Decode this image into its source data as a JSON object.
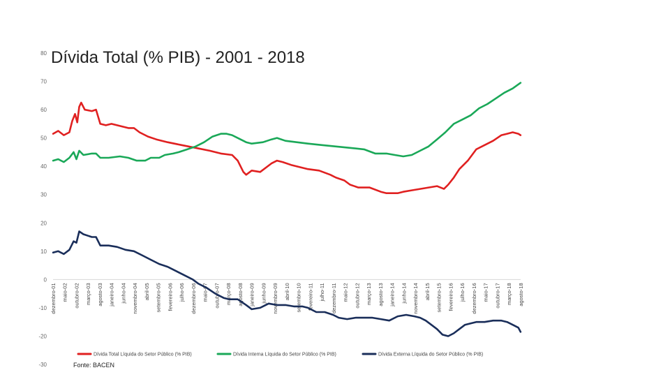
{
  "chart_data": {
    "type": "line",
    "title": "Dívida Total (% PIB) - 2001 - 2018",
    "source": "Fonte: BACEN",
    "ylim": [
      -30,
      80
    ],
    "yticks": [
      "80",
      "70",
      "60",
      "50",
      "40",
      "30",
      "20",
      "10",
      "0",
      "-10",
      "-20",
      "-30"
    ],
    "grid": false,
    "legend_position": "bottom",
    "x_tick_labels": [
      "dezembro-01",
      "maio-02",
      "outubro-02",
      "março-03",
      "agosto-03",
      "janeiro-04",
      "junho-04",
      "novembro-04",
      "abril-05",
      "setembro-05",
      "fevereiro-06",
      "julho-06",
      "dezembro-06",
      "maio-07",
      "outubro-07",
      "março-08",
      "agosto-08",
      "janeiro-09",
      "junho-09",
      "novembro-09",
      "abril-10",
      "setembro-10",
      "fevereiro-11",
      "julho-11",
      "dezembro-11",
      "maio-12",
      "outubro-12",
      "março-13",
      "agosto-13",
      "janeiro-14",
      "junho-14",
      "novembro-14",
      "abril-15",
      "setembro-15",
      "fevereiro-16",
      "julho-16",
      "dezembro-16",
      "maio-17",
      "outubro-17",
      "março-18",
      "agosto-18"
    ],
    "x_start_year": 2001.917,
    "x_end_year": 2018.583,
    "series": [
      {
        "name": "Dívida Total Líquida do Setor Público (% PIB)",
        "color": "#e02020",
        "points": [
          [
            2001.92,
            51.5
          ],
          [
            2002.1,
            52.5
          ],
          [
            2002.3,
            51.0
          ],
          [
            2002.5,
            52.0
          ],
          [
            2002.6,
            56.0
          ],
          [
            2002.7,
            58.5
          ],
          [
            2002.78,
            55.5
          ],
          [
            2002.85,
            61.0
          ],
          [
            2002.92,
            62.5
          ],
          [
            2003.05,
            60.0
          ],
          [
            2003.3,
            59.5
          ],
          [
            2003.45,
            60.0
          ],
          [
            2003.6,
            55.0
          ],
          [
            2003.8,
            54.5
          ],
          [
            2004.0,
            55.0
          ],
          [
            2004.4,
            54.0
          ],
          [
            2004.6,
            53.5
          ],
          [
            2004.8,
            53.5
          ],
          [
            2005.0,
            52.0
          ],
          [
            2005.3,
            50.5
          ],
          [
            2005.6,
            49.5
          ],
          [
            2006.0,
            48.5
          ],
          [
            2006.5,
            47.5
          ],
          [
            2007.0,
            46.5
          ],
          [
            2007.5,
            45.5
          ],
          [
            2007.9,
            44.5
          ],
          [
            2008.3,
            44.0
          ],
          [
            2008.5,
            42.0
          ],
          [
            2008.7,
            38.0
          ],
          [
            2008.8,
            37.0
          ],
          [
            2009.0,
            38.5
          ],
          [
            2009.3,
            38.0
          ],
          [
            2009.7,
            41.0
          ],
          [
            2009.9,
            42.0
          ],
          [
            2010.1,
            41.5
          ],
          [
            2010.4,
            40.5
          ],
          [
            2010.8,
            39.5
          ],
          [
            2011.0,
            39.0
          ],
          [
            2011.4,
            38.5
          ],
          [
            2011.8,
            37.0
          ],
          [
            2012.0,
            36.0
          ],
          [
            2012.3,
            35.0
          ],
          [
            2012.5,
            33.5
          ],
          [
            2012.8,
            32.5
          ],
          [
            2013.2,
            32.5
          ],
          [
            2013.6,
            31.0
          ],
          [
            2013.8,
            30.5
          ],
          [
            2014.0,
            30.5
          ],
          [
            2014.2,
            30.5
          ],
          [
            2014.4,
            31.0
          ],
          [
            2014.7,
            31.5
          ],
          [
            2015.0,
            32.0
          ],
          [
            2015.3,
            32.5
          ],
          [
            2015.6,
            33.0
          ],
          [
            2015.85,
            32.0
          ],
          [
            2016.0,
            33.5
          ],
          [
            2016.2,
            36.0
          ],
          [
            2016.4,
            39.0
          ],
          [
            2016.7,
            42.0
          ],
          [
            2017.0,
            46.0
          ],
          [
            2017.3,
            47.5
          ],
          [
            2017.6,
            49.0
          ],
          [
            2017.9,
            51.0
          ],
          [
            2018.1,
            51.5
          ],
          [
            2018.3,
            52.0
          ],
          [
            2018.5,
            51.5
          ],
          [
            2018.58,
            51.0
          ]
        ]
      },
      {
        "name": "Dívida Interna Líquida do Setor Público (% PIB)",
        "color": "#1aa858",
        "points": [
          [
            2001.92,
            42.0
          ],
          [
            2002.1,
            42.5
          ],
          [
            2002.3,
            41.5
          ],
          [
            2002.5,
            43.0
          ],
          [
            2002.65,
            45.0
          ],
          [
            2002.75,
            42.5
          ],
          [
            2002.85,
            45.5
          ],
          [
            2003.0,
            44.0
          ],
          [
            2003.3,
            44.5
          ],
          [
            2003.45,
            44.5
          ],
          [
            2003.6,
            43.0
          ],
          [
            2003.9,
            43.0
          ],
          [
            2004.3,
            43.5
          ],
          [
            2004.6,
            43.0
          ],
          [
            2004.9,
            42.0
          ],
          [
            2005.2,
            42.0
          ],
          [
            2005.4,
            43.0
          ],
          [
            2005.7,
            43.0
          ],
          [
            2005.9,
            44.0
          ],
          [
            2006.2,
            44.5
          ],
          [
            2006.4,
            45.0
          ],
          [
            2006.7,
            46.0
          ],
          [
            2007.0,
            47.0
          ],
          [
            2007.3,
            48.5
          ],
          [
            2007.6,
            50.5
          ],
          [
            2007.9,
            51.5
          ],
          [
            2008.1,
            51.5
          ],
          [
            2008.3,
            51.0
          ],
          [
            2008.6,
            49.5
          ],
          [
            2008.8,
            48.5
          ],
          [
            2009.0,
            48.0
          ],
          [
            2009.4,
            48.5
          ],
          [
            2009.7,
            49.5
          ],
          [
            2009.9,
            50.0
          ],
          [
            2010.2,
            49.0
          ],
          [
            2010.6,
            48.5
          ],
          [
            2011.0,
            48.0
          ],
          [
            2011.5,
            47.5
          ],
          [
            2012.0,
            47.0
          ],
          [
            2012.5,
            46.5
          ],
          [
            2013.0,
            46.0
          ],
          [
            2013.4,
            44.5
          ],
          [
            2013.8,
            44.5
          ],
          [
            2014.1,
            44.0
          ],
          [
            2014.4,
            43.5
          ],
          [
            2014.7,
            44.0
          ],
          [
            2015.0,
            45.5
          ],
          [
            2015.3,
            47.0
          ],
          [
            2015.6,
            49.5
          ],
          [
            2015.9,
            52.0
          ],
          [
            2016.2,
            55.0
          ],
          [
            2016.5,
            56.5
          ],
          [
            2016.8,
            58.0
          ],
          [
            2017.1,
            60.5
          ],
          [
            2017.4,
            62.0
          ],
          [
            2017.7,
            64.0
          ],
          [
            2018.0,
            66.0
          ],
          [
            2018.3,
            67.5
          ],
          [
            2018.58,
            69.5
          ]
        ]
      },
      {
        "name": "Dívida Externa Líquida do Setor Público (% PIB)",
        "color": "#1a2e5a",
        "points": [
          [
            2001.92,
            9.5
          ],
          [
            2002.1,
            10.0
          ],
          [
            2002.3,
            9.0
          ],
          [
            2002.5,
            10.5
          ],
          [
            2002.65,
            13.5
          ],
          [
            2002.75,
            13.0
          ],
          [
            2002.85,
            17.0
          ],
          [
            2003.0,
            16.0
          ],
          [
            2003.3,
            15.0
          ],
          [
            2003.45,
            15.0
          ],
          [
            2003.6,
            12.0
          ],
          [
            2003.9,
            12.0
          ],
          [
            2004.2,
            11.5
          ],
          [
            2004.5,
            10.5
          ],
          [
            2004.8,
            10.0
          ],
          [
            2005.1,
            8.5
          ],
          [
            2005.4,
            7.0
          ],
          [
            2005.7,
            5.5
          ],
          [
            2006.0,
            4.5
          ],
          [
            2006.3,
            3.0
          ],
          [
            2006.6,
            1.5
          ],
          [
            2006.9,
            0.0
          ],
          [
            2007.1,
            -1.5
          ],
          [
            2007.4,
            -3.0
          ],
          [
            2007.7,
            -5.0
          ],
          [
            2008.0,
            -6.5
          ],
          [
            2008.2,
            -7.0
          ],
          [
            2008.5,
            -7.0
          ],
          [
            2008.8,
            -9.0
          ],
          [
            2009.0,
            -10.5
          ],
          [
            2009.3,
            -10.0
          ],
          [
            2009.6,
            -8.5
          ],
          [
            2009.9,
            -9.0
          ],
          [
            2010.2,
            -9.0
          ],
          [
            2010.5,
            -9.5
          ],
          [
            2010.8,
            -9.5
          ],
          [
            2011.0,
            -10.0
          ],
          [
            2011.3,
            -11.5
          ],
          [
            2011.6,
            -11.5
          ],
          [
            2011.9,
            -12.5
          ],
          [
            2012.1,
            -13.5
          ],
          [
            2012.4,
            -14.0
          ],
          [
            2012.7,
            -13.5
          ],
          [
            2013.0,
            -13.5
          ],
          [
            2013.3,
            -13.5
          ],
          [
            2013.6,
            -14.0
          ],
          [
            2013.9,
            -14.5
          ],
          [
            2014.2,
            -13.0
          ],
          [
            2014.5,
            -12.5
          ],
          [
            2014.8,
            -13.0
          ],
          [
            2015.0,
            -13.5
          ],
          [
            2015.2,
            -14.5
          ],
          [
            2015.4,
            -16.0
          ],
          [
            2015.6,
            -17.5
          ],
          [
            2015.8,
            -19.5
          ],
          [
            2016.0,
            -20.0
          ],
          [
            2016.2,
            -19.0
          ],
          [
            2016.4,
            -17.5
          ],
          [
            2016.6,
            -16.0
          ],
          [
            2016.8,
            -15.5
          ],
          [
            2017.0,
            -15.0
          ],
          [
            2017.3,
            -15.0
          ],
          [
            2017.6,
            -14.5
          ],
          [
            2017.9,
            -14.5
          ],
          [
            2018.1,
            -15.0
          ],
          [
            2018.3,
            -16.0
          ],
          [
            2018.5,
            -17.0
          ],
          [
            2018.58,
            -18.5
          ]
        ]
      }
    ]
  }
}
